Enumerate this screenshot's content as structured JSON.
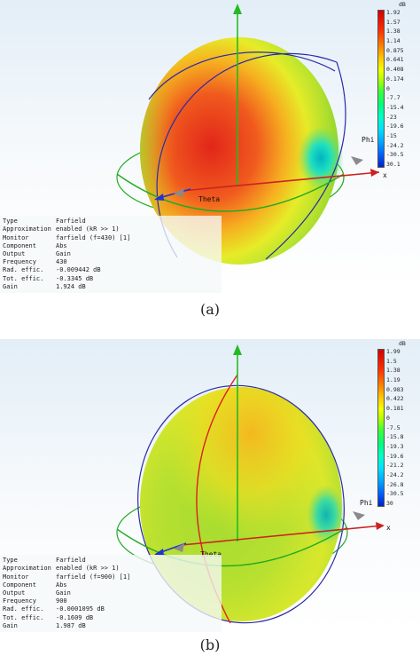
{
  "panels": [
    {
      "caption": "(a)",
      "info": [
        {
          "key": "Type",
          "value": "Farfield"
        },
        {
          "key": "Approximation",
          "value": "enabled (kR >> 1)"
        },
        {
          "key": "Monitor",
          "value": "farfield (f=430) [1]"
        },
        {
          "key": "Component",
          "value": "Abs"
        },
        {
          "key": "Output",
          "value": "Gain"
        },
        {
          "key": "Frequency",
          "value": "430"
        },
        {
          "key": "Rad. effic.",
          "value": "-0.009442 dB"
        },
        {
          "key": "Tot. effic.",
          "value": "-0.3345 dB"
        },
        {
          "key": "Gain",
          "value": "1.924 dB"
        }
      ],
      "legend": {
        "unit": "dB",
        "ticks": [
          "1.92",
          "1.57",
          "1.38",
          "1.14",
          "0.875",
          "0.641",
          "0.408",
          "0.174",
          "0",
          "-7.7",
          "-15.4",
          "-23",
          "-19.6",
          "-15",
          "-24.2",
          "-30.5",
          "30.1"
        ]
      },
      "axes": {
        "phi": "Phi",
        "theta": "Theta",
        "x": "x"
      }
    },
    {
      "caption": "(b)",
      "info": [
        {
          "key": "Type",
          "value": "Farfield"
        },
        {
          "key": "Approximation",
          "value": "enabled (kR >> 1)"
        },
        {
          "key": "Monitor",
          "value": "farfield (f=900) [1]"
        },
        {
          "key": "Component",
          "value": "Abs"
        },
        {
          "key": "Output",
          "value": "Gain"
        },
        {
          "key": "Frequency",
          "value": "900"
        },
        {
          "key": "Rad. effic.",
          "value": "-0.0001095 dB"
        },
        {
          "key": "Tot. effic.",
          "value": "-0.1609 dB"
        },
        {
          "key": "Gain",
          "value": "1.987 dB"
        }
      ],
      "legend": {
        "unit": "dB",
        "ticks": [
          "1.99",
          "1.5",
          "1.38",
          "1.19",
          "0.983",
          "0.422",
          "0.181",
          "0",
          "-7.5",
          "-15.8",
          "-19.3",
          "-19.6",
          "-21.2",
          "-24.2",
          "-26.8",
          "-30.5",
          "30"
        ]
      },
      "axes": {
        "phi": "Phi",
        "theta": "Theta",
        "x": "x"
      }
    }
  ],
  "colors": {
    "sphere_a_center": "#e22a1a",
    "sphere_a_mid": "#f2a020",
    "sphere_a_edge": "#c8e830",
    "sphere_b_center": "#a8dc30",
    "sphere_b_top": "#f0cc20",
    "phi_arc": "#2a2aa8",
    "theta_arc": "#22aa22",
    "z_axis": "#22bb22",
    "x_axis": "#cc2222",
    "y_axis": "#2233cc",
    "red_meridian": "#dd2020"
  }
}
